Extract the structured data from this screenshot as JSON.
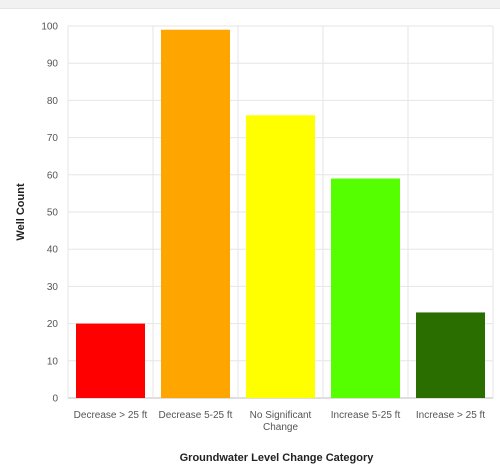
{
  "chart_data": {
    "type": "bar",
    "title": "",
    "xlabel": "Groundwater Level Change Category",
    "ylabel": "Well Count",
    "ylim": [
      0,
      100
    ],
    "yticks": [
      0,
      10,
      20,
      30,
      40,
      50,
      60,
      70,
      80,
      90,
      100
    ],
    "grid": true,
    "categories": [
      [
        "Decrease > 25 ft"
      ],
      [
        "Decrease 5-25 ft"
      ],
      [
        "No Significant",
        "Change"
      ],
      [
        "Increase 5-25 ft"
      ],
      [
        "Increase > 25 ft"
      ]
    ],
    "values": [
      20,
      99,
      76,
      59,
      23
    ],
    "colors": [
      "#ff0000",
      "#ffa500",
      "#ffff00",
      "#55ff00",
      "#2a6e00"
    ]
  }
}
